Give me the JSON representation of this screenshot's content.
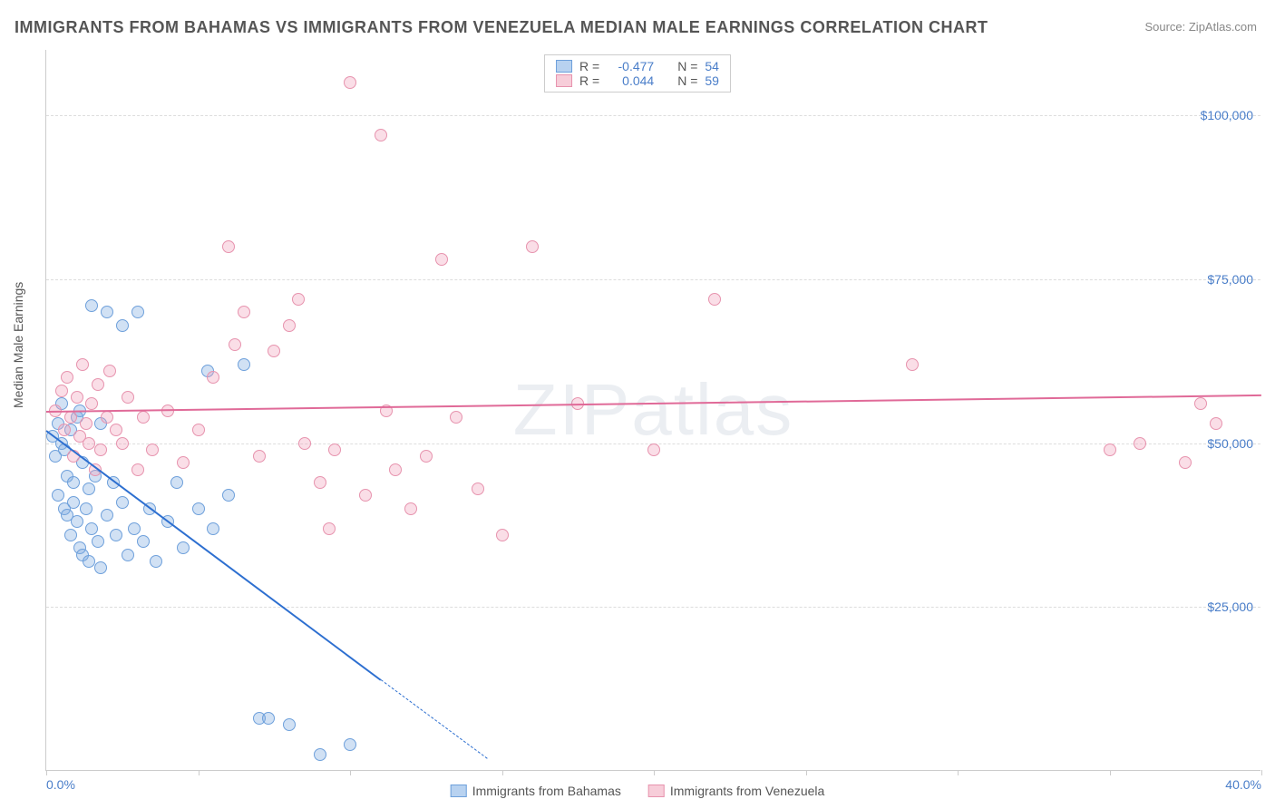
{
  "title": "IMMIGRANTS FROM BAHAMAS VS IMMIGRANTS FROM VENEZUELA MEDIAN MALE EARNINGS CORRELATION CHART",
  "source_prefix": "Source: ",
  "source_link": "ZipAtlas.com",
  "watermark": "ZIPatlas",
  "y_axis_label": "Median Male Earnings",
  "chart": {
    "type": "scatter",
    "xlim": [
      0,
      40
    ],
    "ylim": [
      0,
      110000
    ],
    "x_ticks": [
      0,
      5,
      10,
      15,
      20,
      25,
      30,
      35,
      40
    ],
    "x_tick_labels": {
      "0": "0.0%",
      "40": "40.0%"
    },
    "y_gridlines": [
      25000,
      50000,
      75000,
      100000
    ],
    "y_tick_labels": {
      "25000": "$25,000",
      "50000": "$50,000",
      "75000": "$75,000",
      "100000": "$100,000"
    },
    "background_color": "#ffffff",
    "grid_color": "#dddddd",
    "axis_color": "#cccccc",
    "tick_label_color": "#4a7ec9",
    "marker_radius": 7,
    "marker_stroke_width": 1.5,
    "series": [
      {
        "name": "Immigrants from Bahamas",
        "label": "Immigrants from Bahamas",
        "fill_color": "rgba(122,168,224,0.35)",
        "stroke_color": "#6ea0db",
        "swatch_fill": "#b8d2f0",
        "swatch_border": "#6ea0db",
        "R": "-0.477",
        "N": "54",
        "trend": {
          "x1": 0,
          "y1": 52000,
          "x2": 11,
          "y2": 14000,
          "color": "#2d6fd0",
          "width": 2,
          "dash_extend": {
            "x2": 14.5,
            "y2": 2000
          }
        },
        "points": [
          [
            0.2,
            51000
          ],
          [
            0.3,
            48000
          ],
          [
            0.4,
            53000
          ],
          [
            0.4,
            42000
          ],
          [
            0.5,
            56000
          ],
          [
            0.5,
            50000
          ],
          [
            0.6,
            40000
          ],
          [
            0.6,
            49000
          ],
          [
            0.7,
            45000
          ],
          [
            0.7,
            39000
          ],
          [
            0.8,
            52000
          ],
          [
            0.8,
            36000
          ],
          [
            0.9,
            44000
          ],
          [
            0.9,
            41000
          ],
          [
            1.0,
            54000
          ],
          [
            1.0,
            38000
          ],
          [
            1.1,
            34000
          ],
          [
            1.1,
            55000
          ],
          [
            1.2,
            47000
          ],
          [
            1.2,
            33000
          ],
          [
            1.3,
            40000
          ],
          [
            1.4,
            32000
          ],
          [
            1.4,
            43000
          ],
          [
            1.5,
            71000
          ],
          [
            1.5,
            37000
          ],
          [
            1.6,
            45000
          ],
          [
            1.7,
            35000
          ],
          [
            1.8,
            53000
          ],
          [
            1.8,
            31000
          ],
          [
            2.0,
            70000
          ],
          [
            2.0,
            39000
          ],
          [
            2.2,
            44000
          ],
          [
            2.3,
            36000
          ],
          [
            2.5,
            68000
          ],
          [
            2.5,
            41000
          ],
          [
            2.7,
            33000
          ],
          [
            2.9,
            37000
          ],
          [
            3.0,
            70000
          ],
          [
            3.2,
            35000
          ],
          [
            3.4,
            40000
          ],
          [
            3.6,
            32000
          ],
          [
            4.0,
            38000
          ],
          [
            4.3,
            44000
          ],
          [
            4.5,
            34000
          ],
          [
            5.0,
            40000
          ],
          [
            5.3,
            61000
          ],
          [
            5.5,
            37000
          ],
          [
            6.0,
            42000
          ],
          [
            6.5,
            62000
          ],
          [
            7.0,
            8000
          ],
          [
            7.3,
            8000
          ],
          [
            8.0,
            7000
          ],
          [
            9.0,
            2500
          ],
          [
            10.0,
            4000
          ]
        ]
      },
      {
        "name": "Immigrants from Venezuela",
        "label": "Immigrants from Venezuela",
        "fill_color": "rgba(240,160,185,0.35)",
        "stroke_color": "#e793ae",
        "swatch_fill": "#f7cdd9",
        "swatch_border": "#e793ae",
        "R": "0.044",
        "N": "59",
        "trend": {
          "x1": 0,
          "y1": 55000,
          "x2": 40,
          "y2": 57500,
          "color": "#e06a98",
          "width": 2
        },
        "points": [
          [
            0.3,
            55000
          ],
          [
            0.5,
            58000
          ],
          [
            0.6,
            52000
          ],
          [
            0.7,
            60000
          ],
          [
            0.8,
            54000
          ],
          [
            0.9,
            48000
          ],
          [
            1.0,
            57000
          ],
          [
            1.1,
            51000
          ],
          [
            1.2,
            62000
          ],
          [
            1.3,
            53000
          ],
          [
            1.4,
            50000
          ],
          [
            1.5,
            56000
          ],
          [
            1.6,
            46000
          ],
          [
            1.7,
            59000
          ],
          [
            1.8,
            49000
          ],
          [
            2.0,
            54000
          ],
          [
            2.1,
            61000
          ],
          [
            2.3,
            52000
          ],
          [
            2.5,
            50000
          ],
          [
            2.7,
            57000
          ],
          [
            3.0,
            46000
          ],
          [
            3.2,
            54000
          ],
          [
            3.5,
            49000
          ],
          [
            4.0,
            55000
          ],
          [
            4.5,
            47000
          ],
          [
            5.0,
            52000
          ],
          [
            5.5,
            60000
          ],
          [
            6.0,
            80000
          ],
          [
            6.2,
            65000
          ],
          [
            6.5,
            70000
          ],
          [
            7.0,
            48000
          ],
          [
            7.5,
            64000
          ],
          [
            8.0,
            68000
          ],
          [
            8.3,
            72000
          ],
          [
            8.5,
            50000
          ],
          [
            9.0,
            44000
          ],
          [
            9.3,
            37000
          ],
          [
            9.5,
            49000
          ],
          [
            10.0,
            105000
          ],
          [
            10.5,
            42000
          ],
          [
            11.0,
            97000
          ],
          [
            11.2,
            55000
          ],
          [
            11.5,
            46000
          ],
          [
            12.0,
            40000
          ],
          [
            12.5,
            48000
          ],
          [
            13.0,
            78000
          ],
          [
            13.5,
            54000
          ],
          [
            14.2,
            43000
          ],
          [
            15.0,
            36000
          ],
          [
            16.0,
            80000
          ],
          [
            17.5,
            56000
          ],
          [
            20.0,
            49000
          ],
          [
            22.0,
            72000
          ],
          [
            28.5,
            62000
          ],
          [
            35.0,
            49000
          ],
          [
            36.0,
            50000
          ],
          [
            37.5,
            47000
          ],
          [
            38.0,
            56000
          ],
          [
            38.5,
            53000
          ]
        ]
      }
    ]
  },
  "legend_top": {
    "R_label": "R =",
    "N_label": "N ="
  }
}
